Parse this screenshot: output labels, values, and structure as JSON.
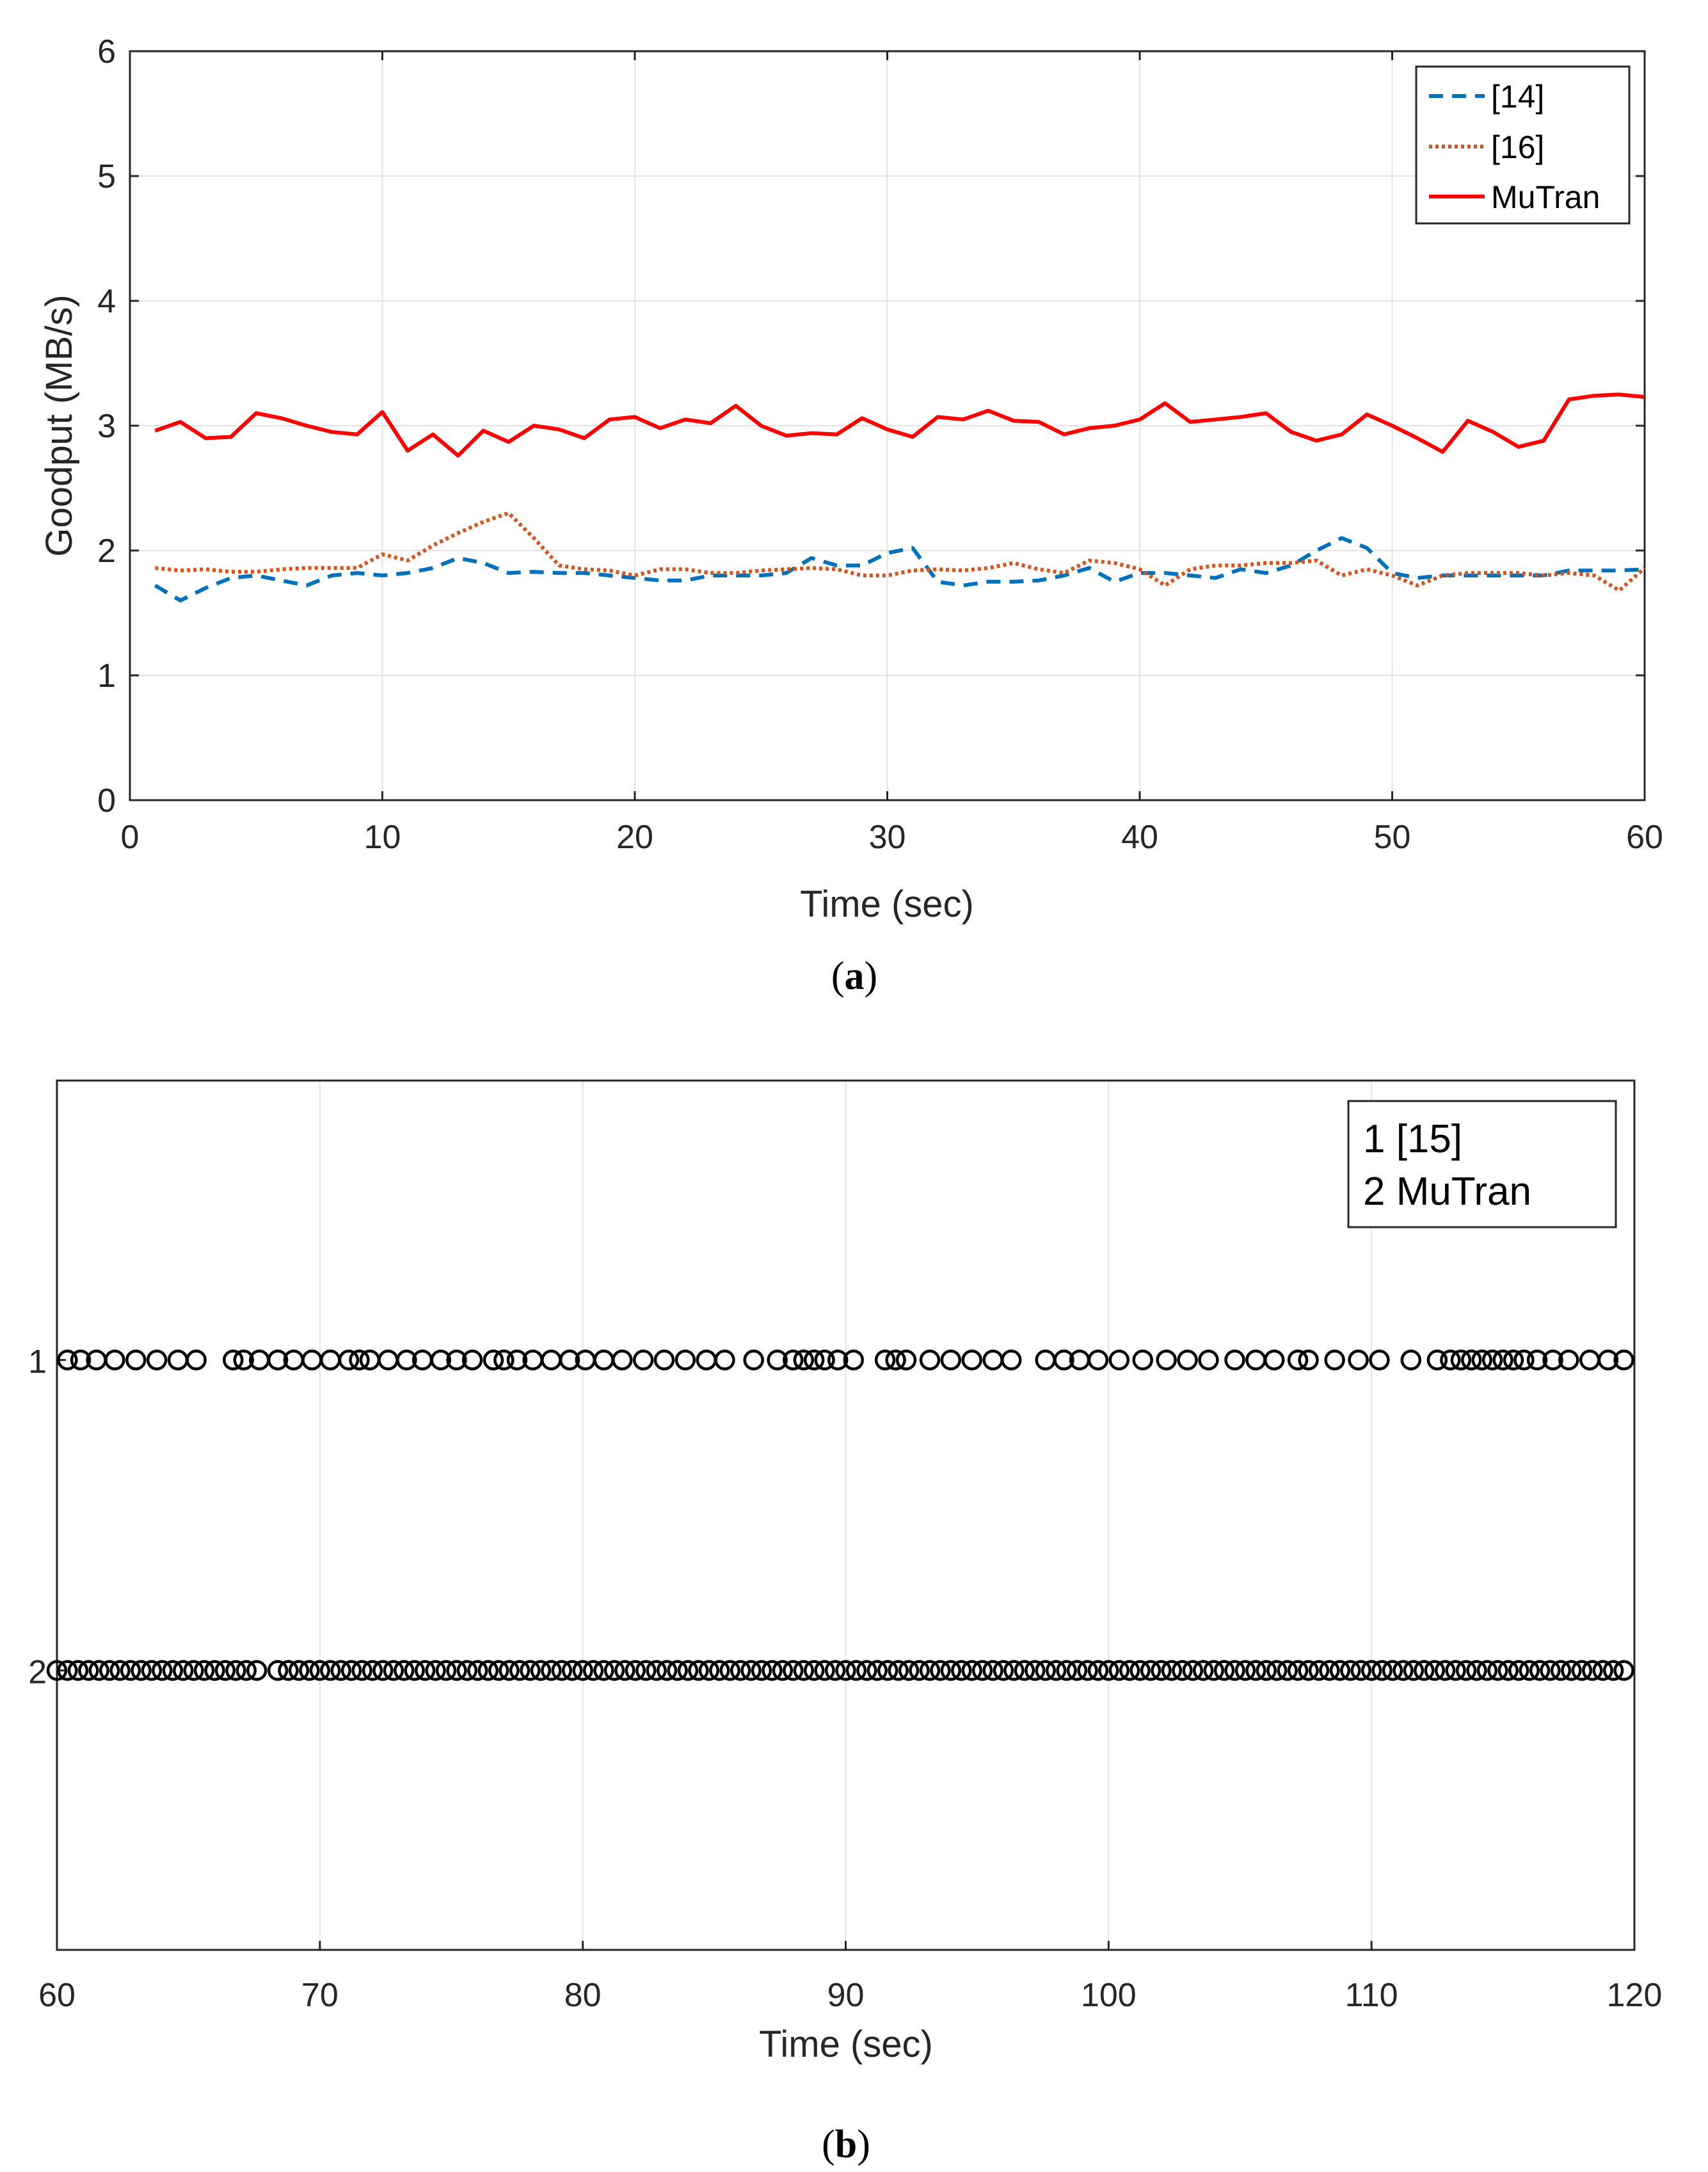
{
  "chart_data": [
    {
      "type": "line",
      "caption_letter": "a",
      "xlabel": "Time (sec)",
      "ylabel": "Goodput (MB/s)",
      "xlim": [
        0,
        60
      ],
      "ylim": [
        0,
        6
      ],
      "xticks": [
        0,
        10,
        20,
        30,
        40,
        50,
        60
      ],
      "yticks": [
        0,
        1,
        2,
        3,
        4,
        5,
        6
      ],
      "grid": true,
      "legend_position": "top-right",
      "x": [
        1,
        2,
        3,
        4,
        5,
        6,
        7,
        8,
        9,
        10,
        11,
        12,
        13,
        14,
        15,
        16,
        17,
        18,
        19,
        20,
        21,
        22,
        23,
        24,
        25,
        26,
        27,
        28,
        29,
        30,
        31,
        32,
        33,
        34,
        35,
        36,
        37,
        38,
        39,
        40,
        41,
        42,
        43,
        44,
        45,
        46,
        47,
        48,
        49,
        50,
        51,
        52,
        53,
        54,
        55,
        56,
        57,
        58,
        59,
        60
      ],
      "series": [
        {
          "name": "[14]",
          "color": "#0072BD",
          "style": "dashed",
          "values": [
            1.72,
            1.6,
            1.7,
            1.78,
            1.8,
            1.76,
            1.72,
            1.8,
            1.82,
            1.8,
            1.82,
            1.86,
            1.94,
            1.9,
            1.82,
            1.83,
            1.82,
            1.82,
            1.8,
            1.78,
            1.76,
            1.76,
            1.8,
            1.8,
            1.8,
            1.82,
            1.94,
            1.88,
            1.88,
            1.98,
            2.02,
            1.75,
            1.72,
            1.75,
            1.75,
            1.76,
            1.8,
            1.86,
            1.75,
            1.82,
            1.82,
            1.8,
            1.78,
            1.85,
            1.82,
            1.88,
            2.0,
            2.1,
            2.02,
            1.82,
            1.78,
            1.8,
            1.8,
            1.8,
            1.8,
            1.8,
            1.84,
            1.84,
            1.84,
            1.85
          ]
        },
        {
          "name": "[16]",
          "color": "#D95319",
          "style": "dotted",
          "values": [
            1.86,
            1.84,
            1.85,
            1.83,
            1.83,
            1.85,
            1.86,
            1.86,
            1.86,
            1.97,
            1.92,
            2.04,
            2.14,
            2.23,
            2.3,
            2.1,
            1.88,
            1.85,
            1.84,
            1.8,
            1.85,
            1.85,
            1.82,
            1.82,
            1.84,
            1.85,
            1.86,
            1.85,
            1.8,
            1.8,
            1.84,
            1.85,
            1.84,
            1.86,
            1.9,
            1.85,
            1.82,
            1.92,
            1.9,
            1.85,
            1.72,
            1.85,
            1.88,
            1.88,
            1.9,
            1.9,
            1.92,
            1.8,
            1.85,
            1.8,
            1.72,
            1.8,
            1.82,
            1.82,
            1.82,
            1.8,
            1.82,
            1.8,
            1.68,
            1.86
          ]
        },
        {
          "name": "MuTran",
          "color": "#FF0000",
          "style": "solid",
          "values": [
            2.96,
            3.03,
            2.9,
            2.91,
            3.1,
            3.06,
            3.0,
            2.95,
            2.93,
            3.11,
            2.8,
            2.93,
            2.76,
            2.96,
            2.87,
            3.0,
            2.97,
            2.9,
            3.05,
            3.07,
            2.98,
            3.05,
            3.02,
            3.16,
            3.0,
            2.92,
            2.94,
            2.93,
            3.06,
            2.97,
            2.91,
            3.07,
            3.05,
            3.12,
            3.04,
            3.03,
            2.93,
            2.98,
            3.0,
            3.05,
            3.18,
            3.03,
            3.05,
            3.07,
            3.1,
            2.95,
            2.88,
            2.93,
            3.09,
            3.0,
            2.9,
            2.79,
            3.04,
            2.95,
            2.83,
            2.88,
            3.21,
            3.24,
            3.25,
            3.23
          ]
        }
      ]
    },
    {
      "type": "scatter",
      "caption_letter": "b",
      "xlabel": "Time (sec)",
      "ylabel": "",
      "xlim": [
        60,
        120
      ],
      "ylim": [
        2.9,
        0.1
      ],
      "xticks": [
        60,
        70,
        80,
        90,
        100,
        110,
        120
      ],
      "ytick_labels": [
        "1",
        "2"
      ],
      "ytick_values": [
        1,
        2
      ],
      "grid": true,
      "legend_position": "top-right",
      "marker": "circle",
      "legend": [
        "1 [15]",
        "2 MuTran"
      ],
      "series": [
        {
          "name": "1 [15]",
          "y": 1,
          "x": [
            60.4,
            60.9,
            61.5,
            62.2,
            63.0,
            63.8,
            64.6,
            65.3,
            66.7,
            67.1,
            67.7,
            68.4,
            69.0,
            69.7,
            70.4,
            71.1,
            71.5,
            71.9,
            72.6,
            73.3,
            73.9,
            74.6,
            75.2,
            75.8,
            76.6,
            77.0,
            77.5,
            78.1,
            78.8,
            79.5,
            80.1,
            80.8,
            81.5,
            82.3,
            83.1,
            83.9,
            84.7,
            85.4,
            86.5,
            87.4,
            88.0,
            88.4,
            88.8,
            89.2,
            89.7,
            90.3,
            91.5,
            91.9,
            92.3,
            93.2,
            94.0,
            94.8,
            95.6,
            96.3,
            97.6,
            98.3,
            98.9,
            99.6,
            100.4,
            101.3,
            102.2,
            103.0,
            103.8,
            104.8,
            105.6,
            106.3,
            107.2,
            107.6,
            108.6,
            109.5,
            110.3,
            111.5,
            112.5,
            113.0,
            113.4,
            113.8,
            114.2,
            114.6,
            115.0,
            115.4,
            115.8,
            116.3,
            116.9,
            117.5,
            118.3,
            119.0,
            119.6
          ]
        },
        {
          "name": "2 MuTran",
          "y": 2,
          "x": [
            60.0,
            60.4,
            60.8,
            61.2,
            61.6,
            62.0,
            62.4,
            62.8,
            63.2,
            63.6,
            64.0,
            64.4,
            64.8,
            65.2,
            65.6,
            66.0,
            66.4,
            66.8,
            67.2,
            67.6,
            68.4,
            68.8,
            69.2,
            69.6,
            70.0,
            70.4,
            70.8,
            71.2,
            71.6,
            72.0,
            72.4,
            72.8,
            73.2,
            73.6,
            74.0,
            74.4,
            74.8,
            75.2,
            75.6,
            76.0,
            76.4,
            76.8,
            77.2,
            77.6,
            78.0,
            78.4,
            78.8,
            79.2,
            79.6,
            80.0,
            80.4,
            80.8,
            81.2,
            81.6,
            82.0,
            82.4,
            82.8,
            83.2,
            83.6,
            84.0,
            84.4,
            84.8,
            85.2,
            85.6,
            86.0,
            86.4,
            86.8,
            87.2,
            87.6,
            88.0,
            88.4,
            88.8,
            89.2,
            89.6,
            90.0,
            90.4,
            90.8,
            91.2,
            91.6,
            92.0,
            92.4,
            92.8,
            93.2,
            93.6,
            94.0,
            94.4,
            94.8,
            95.2,
            95.6,
            96.0,
            96.4,
            96.8,
            97.2,
            97.6,
            98.0,
            98.4,
            98.8,
            99.2,
            99.6,
            100.0,
            100.4,
            100.8,
            101.2,
            101.6,
            102.0,
            102.4,
            102.8,
            103.2,
            103.6,
            104.0,
            104.4,
            104.8,
            105.2,
            105.6,
            106.0,
            106.4,
            106.8,
            107.2,
            107.6,
            108.0,
            108.4,
            108.8,
            109.2,
            109.6,
            110.0,
            110.4,
            110.8,
            111.2,
            111.6,
            112.0,
            112.4,
            112.8,
            113.2,
            113.6,
            114.0,
            114.4,
            114.8,
            115.2,
            115.6,
            116.0,
            116.4,
            116.8,
            117.2,
            117.6,
            118.0,
            118.4,
            118.8,
            119.2,
            119.6
          ]
        }
      ]
    }
  ]
}
